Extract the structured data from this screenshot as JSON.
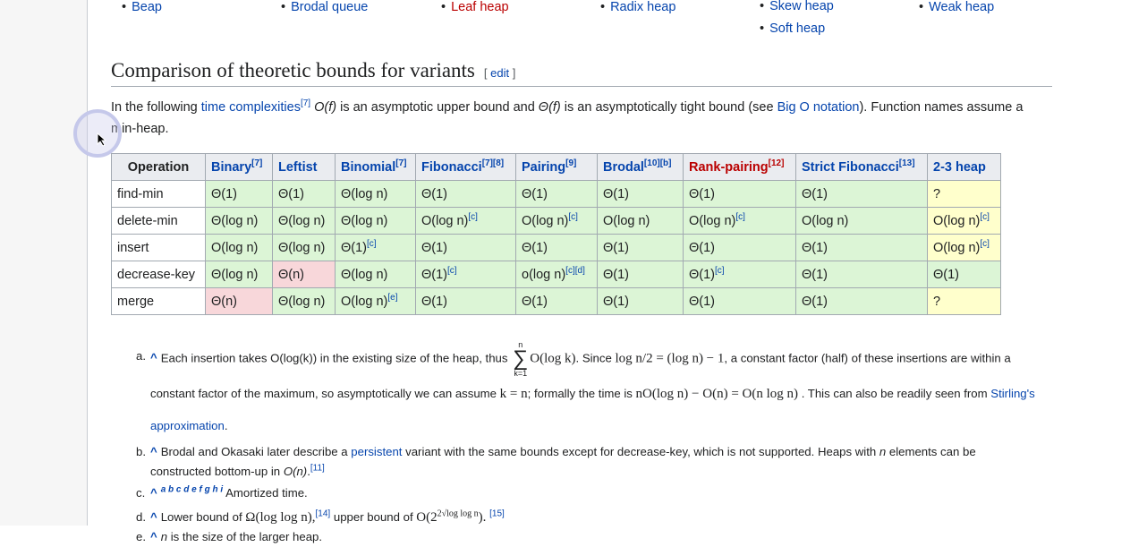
{
  "heap_links": [
    [
      "Beap"
    ],
    [
      "Brodal queue"
    ],
    [
      "Leaf heap"
    ],
    [
      "Radix heap"
    ],
    [
      "Skew heap",
      "Soft heap"
    ],
    [
      "Weak heap"
    ]
  ],
  "section": {
    "title": "Comparison of theoretic bounds for variants",
    "edit": [
      "[",
      "edit",
      "]"
    ]
  },
  "intro": [
    "In the following ",
    "time complexities",
    "[7]",
    " ",
    "O(f)",
    " is an asymptotic upper bound and ",
    "Θ(f)",
    " is an asymptotically tight bound (see ",
    "Big O notation",
    "). Function names assume a min-heap."
  ],
  "table": {
    "headers": [
      {
        "text": "Operation"
      },
      {
        "text": "Binary",
        "sup": "[7]"
      },
      {
        "text": "Leftist"
      },
      {
        "text": "Binomial",
        "sup": "[7]"
      },
      {
        "text": "Fibonacci",
        "sup": "[7][8]"
      },
      {
        "text": "Pairing",
        "sup": "[9]"
      },
      {
        "text": "Brodal",
        "sup": "[10][b]"
      },
      {
        "text": "Rank-pairing",
        "sup": "[12]"
      },
      {
        "text": "Strict Fibonacci",
        "sup": "[13]"
      },
      {
        "text": "2-3 heap"
      }
    ],
    "rows": [
      [
        {
          "text": "find-min"
        },
        {
          "text": "Θ(1)",
          "color": "#dcf5d6"
        },
        {
          "text": "Θ(1)",
          "color": "#dcf5d6"
        },
        {
          "text": "Θ(log n)",
          "color": "#dcf5d6"
        },
        {
          "text": "Θ(1)",
          "color": "#dcf5d6"
        },
        {
          "text": "Θ(1)",
          "color": "#dcf5d6"
        },
        {
          "text": "Θ(1)",
          "color": "#dcf5d6"
        },
        {
          "text": "Θ(1)",
          "color": "#dcf5d6"
        },
        {
          "text": "Θ(1)",
          "color": "#dcf5d6"
        },
        {
          "text": "?",
          "color": "#ffffcc"
        }
      ],
      [
        {
          "text": "delete-min"
        },
        {
          "text": "Θ(log n)",
          "color": "#dcf5d6"
        },
        {
          "text": "Θ(log n)",
          "color": "#dcf5d6"
        },
        {
          "text": "Θ(log n)",
          "color": "#dcf5d6"
        },
        {
          "text": "O(log n)",
          "sup": "[c]",
          "color": "#dcf5d6"
        },
        {
          "text": "O(log n)",
          "sup": "[c]",
          "color": "#dcf5d6"
        },
        {
          "text": "O(log n)",
          "color": "#dcf5d6"
        },
        {
          "text": "O(log n)",
          "sup": "[c]",
          "color": "#dcf5d6"
        },
        {
          "text": "O(log n)",
          "color": "#dcf5d6"
        },
        {
          "text": "O(log n)",
          "sup": "[c]",
          "color": "#ffffcc"
        }
      ],
      [
        {
          "text": "insert"
        },
        {
          "text": "O(log n)",
          "color": "#dcf5d6"
        },
        {
          "text": "Θ(log n)",
          "color": "#dcf5d6"
        },
        {
          "text": "Θ(1)",
          "sup": "[c]",
          "color": "#dcf5d6"
        },
        {
          "text": "Θ(1)",
          "color": "#dcf5d6"
        },
        {
          "text": "Θ(1)",
          "color": "#dcf5d6"
        },
        {
          "text": "Θ(1)",
          "color": "#dcf5d6"
        },
        {
          "text": "Θ(1)",
          "color": "#dcf5d6"
        },
        {
          "text": "Θ(1)",
          "color": "#dcf5d6"
        },
        {
          "text": "O(log n)",
          "sup": "[c]",
          "color": "#ffffcc"
        }
      ],
      [
        {
          "text": "decrease-key"
        },
        {
          "text": "Θ(log n)",
          "color": "#dcf5d6"
        },
        {
          "text": "Θ(n)",
          "color": "#f8d7da"
        },
        {
          "text": "Θ(log n)",
          "color": "#dcf5d6"
        },
        {
          "text": "Θ(1)",
          "sup": "[c]",
          "color": "#dcf5d6"
        },
        {
          "text": "o(log n)",
          "sup": "[c][d]",
          "color": "#dcf5d6"
        },
        {
          "text": "Θ(1)",
          "color": "#dcf5d6"
        },
        {
          "text": "Θ(1)",
          "sup": "[c]",
          "color": "#dcf5d6"
        },
        {
          "text": "Θ(1)",
          "color": "#dcf5d6"
        },
        {
          "text": "Θ(1)",
          "color": "#dcf5d6"
        }
      ],
      [
        {
          "text": "merge"
        },
        {
          "text": "Θ(n)",
          "color": "#f8d7da"
        },
        {
          "text": "Θ(log n)",
          "color": "#dcf5d6"
        },
        {
          "text": "O(log n)",
          "sup": "[e]",
          "color": "#dcf5d6"
        },
        {
          "text": "Θ(1)",
          "color": "#dcf5d6"
        },
        {
          "text": "Θ(1)",
          "color": "#dcf5d6"
        },
        {
          "text": "Θ(1)",
          "color": "#dcf5d6"
        },
        {
          "text": "Θ(1)",
          "color": "#dcf5d6"
        },
        {
          "text": "Θ(1)",
          "color": "#dcf5d6"
        },
        {
          "text": "?",
          "color": "#ffffcc"
        }
      ]
    ]
  },
  "notes": [
    {
      "label": "a.",
      "backlink": "^",
      "parts": [
        "Each insertion takes O(log(k)) in the existing size of the heap, thus ",
        "n",
        "∑",
        "k=1",
        "O(log k)",
        ". Since ",
        "log n/2 = (log n) − 1",
        ", a constant factor (half) of these insertions are within a constant factor of the maximum, so asymptotically we can assume ",
        "k = n",
        "; formally the time is ",
        "nO(log n) − O(n) = O(n log n)",
        " . This can also be readily seen from ",
        "Stirling's approximation",
        "."
      ]
    },
    {
      "label": "b.",
      "backlink": "^",
      "parts": [
        "Brodal and Okasaki later describe a ",
        "persistent",
        " variant with the same bounds except for decrease-key, which is not supported. Heaps with ",
        "n",
        " elements can be constructed bottom-up in ",
        "O(n)",
        ".",
        "[11]"
      ]
    },
    {
      "label": "c.",
      "backlink": "^",
      "parts": [
        "a b c d e f g h i",
        "Amortized time."
      ]
    },
    {
      "label": "d.",
      "backlink": "^",
      "parts": [
        "Lower bound of ",
        "Ω(log log n),",
        "[14]",
        " upper bound of ",
        "O(2",
        "2√log log n",
        "). ",
        "[15]"
      ]
    },
    {
      "label": "e.",
      "backlink": "^",
      "parts": [
        "n",
        " is the size of the larger heap."
      ]
    }
  ]
}
